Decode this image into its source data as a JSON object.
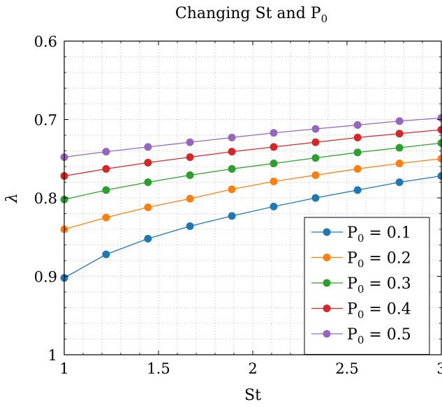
{
  "chart_data": {
    "type": "line",
    "title": "Changing St and P",
    "title_subscript": "0",
    "xlabel": "St",
    "ylabel": "λ",
    "xlim": [
      1,
      3
    ],
    "ylim": [
      0.6,
      1.0
    ],
    "y_inverted": true,
    "grid": "dotted",
    "legend_position": "bottom-right",
    "xticks": [
      1,
      1.5,
      2,
      2.5,
      3
    ],
    "xtick_labels": [
      "1",
      "1.5",
      "2",
      "2.5",
      "3"
    ],
    "yticks": [
      0.6,
      0.7,
      0.8,
      0.9,
      1.0
    ],
    "ytick_labels": [
      "0.6",
      "0.7",
      "0.8",
      "0.9",
      "1"
    ],
    "x": [
      1.0,
      1.222,
      1.444,
      1.667,
      1.889,
      2.111,
      2.333,
      2.556,
      2.778,
      3.0
    ],
    "series": [
      {
        "name": "P0 = 0.1",
        "label_main": "P",
        "label_sub": "0",
        "label_rest": " = 0.1",
        "color": "#1f77b4",
        "values": [
          0.902,
          0.872,
          0.852,
          0.836,
          0.823,
          0.811,
          0.8,
          0.79,
          0.78,
          0.772
        ]
      },
      {
        "name": "P0 = 0.2",
        "label_main": "P",
        "label_sub": "0",
        "label_rest": " = 0.2",
        "color": "#ff7f0e",
        "values": [
          0.84,
          0.825,
          0.812,
          0.801,
          0.789,
          0.779,
          0.771,
          0.763,
          0.756,
          0.75
        ]
      },
      {
        "name": "P0 = 0.3",
        "label_main": "P",
        "label_sub": "0",
        "label_rest": " = 0.3",
        "color": "#2ca02c",
        "values": [
          0.802,
          0.79,
          0.78,
          0.771,
          0.763,
          0.756,
          0.749,
          0.742,
          0.736,
          0.73
        ]
      },
      {
        "name": "P0 = 0.4",
        "label_main": "P",
        "label_sub": "0",
        "label_rest": " = 0.4",
        "color": "#d62728",
        "values": [
          0.772,
          0.763,
          0.755,
          0.748,
          0.741,
          0.735,
          0.729,
          0.723,
          0.718,
          0.713
        ]
      },
      {
        "name": "P0 = 0.5",
        "label_main": "P",
        "label_sub": "0",
        "label_rest": " = 0.5",
        "color": "#9467bd",
        "values": [
          0.748,
          0.741,
          0.735,
          0.729,
          0.723,
          0.717,
          0.712,
          0.707,
          0.702,
          0.698
        ]
      }
    ]
  }
}
